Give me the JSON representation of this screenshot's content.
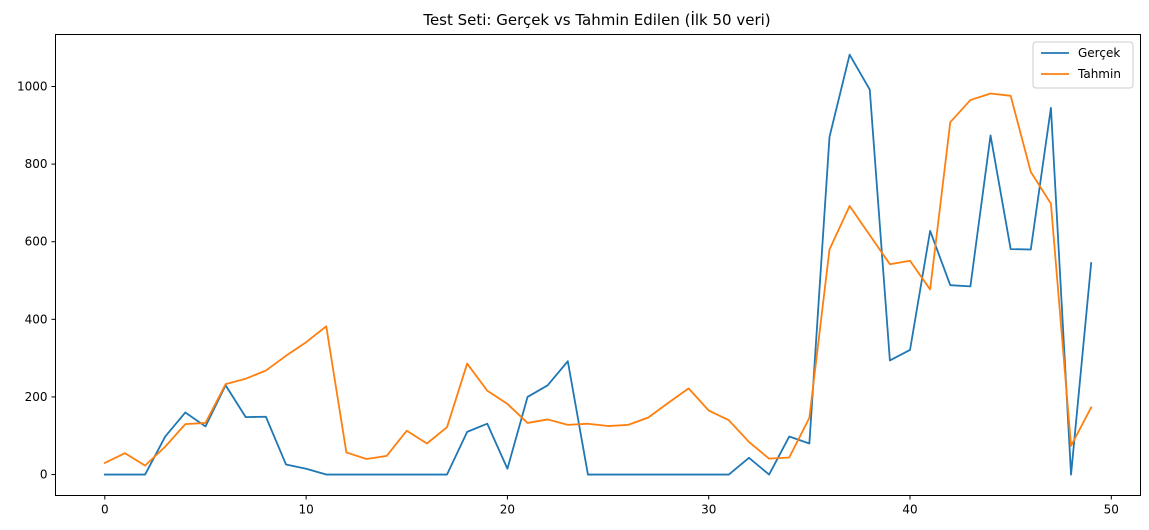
{
  "chart_data": {
    "type": "line",
    "title": "Test Seti: Gerçek vs Tahmin Edilen (İlk 50 veri)",
    "xlabel": "",
    "ylabel": "",
    "xlim": [
      -2.45,
      51.45
    ],
    "ylim": [
      -54,
      1134
    ],
    "x_ticks": [
      0,
      10,
      20,
      30,
      40,
      50
    ],
    "y_ticks": [
      0,
      200,
      400,
      600,
      800,
      1000
    ],
    "x_tick_labels": [
      "0",
      "10",
      "20",
      "30",
      "40",
      "50"
    ],
    "y_tick_labels": [
      "0",
      "200",
      "400",
      "600",
      "800",
      "1000"
    ],
    "grid": false,
    "legend_position": "top-right",
    "x": [
      0,
      1,
      2,
      3,
      4,
      5,
      6,
      7,
      8,
      9,
      10,
      11,
      12,
      13,
      14,
      15,
      16,
      17,
      18,
      19,
      20,
      21,
      22,
      23,
      24,
      25,
      26,
      27,
      28,
      29,
      30,
      31,
      32,
      33,
      34,
      35,
      36,
      37,
      38,
      39,
      40,
      41,
      42,
      43,
      44,
      45,
      46,
      47,
      48,
      49
    ],
    "series": [
      {
        "name": "Gerçek",
        "color": "#1f77b4",
        "values": [
          0,
          0,
          0,
          98,
          160,
          124,
          230,
          148,
          149,
          26,
          15,
          0,
          0,
          0,
          0,
          0,
          0,
          0,
          110,
          131,
          15,
          200,
          230,
          292,
          0,
          0,
          0,
          0,
          0,
          0,
          0,
          0,
          43,
          0,
          98,
          80,
          870,
          1082,
          992,
          294,
          321,
          628,
          488,
          485,
          874,
          581,
          580,
          945,
          0,
          545
        ]
      },
      {
        "name": "Tahmin",
        "color": "#ff7f0e",
        "values": [
          30,
          55,
          23,
          72,
          130,
          133,
          233,
          247,
          268,
          306,
          341,
          382,
          57,
          40,
          48,
          113,
          80,
          122,
          286,
          216,
          182,
          133,
          142,
          128,
          131,
          125,
          128,
          147,
          185,
          222,
          165,
          140,
          84,
          41,
          44,
          146,
          580,
          692,
          617,
          542,
          551,
          477,
          908,
          965,
          982,
          976,
          780,
          698,
          74,
          173
        ]
      }
    ]
  }
}
